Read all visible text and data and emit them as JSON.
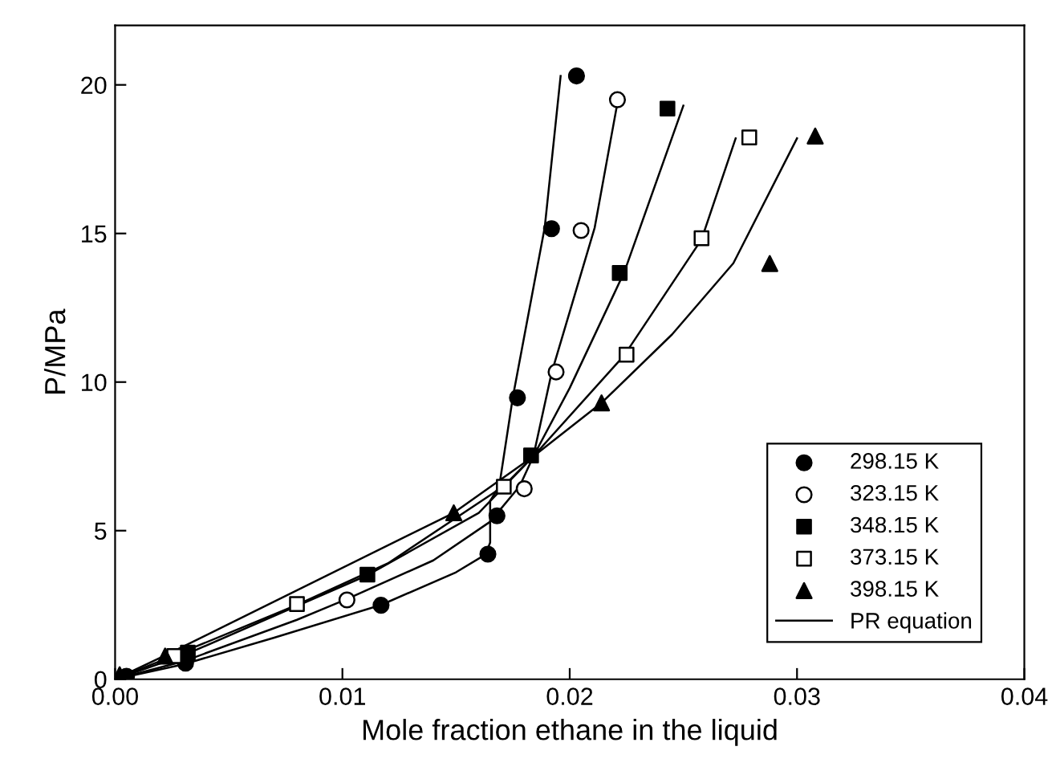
{
  "chart_data": {
    "type": "scatter",
    "xlabel": "Mole fraction ethane in the liquid",
    "ylabel": "P/MPa",
    "xlim": [
      0,
      0.04
    ],
    "ylim": [
      0,
      22
    ],
    "xticks": [
      {
        "value": 0,
        "label": "0.00"
      },
      {
        "value": 0.01,
        "label": "0.01"
      },
      {
        "value": 0.02,
        "label": "0.02"
      },
      {
        "value": 0.03,
        "label": "0.03"
      },
      {
        "value": 0.04,
        "label": "0.04"
      }
    ],
    "yticks": [
      0,
      5,
      10,
      15,
      20
    ],
    "grid": false,
    "legend": "bottom right",
    "series": [
      {
        "name": "298.15 K",
        "marker": "circle",
        "color": "#000000",
        "x": [
          0.0005,
          0.0031,
          0.0117,
          0.0164,
          0.0168,
          0.0177,
          0.0192,
          0.0203
        ],
        "values": [
          0.1,
          0.54,
          2.49,
          4.21,
          5.5,
          9.47,
          15.16,
          20.3
        ]
      },
      {
        "name": "323.15 K",
        "marker": "circle",
        "color": "#ffffff",
        "x": [
          0.0102,
          0.018,
          0.0194,
          0.0205,
          0.0221
        ],
        "values": [
          2.67,
          6.41,
          10.34,
          15.1,
          19.5
        ]
      },
      {
        "name": "348.15 K",
        "marker": "square",
        "color": "#000000",
        "x": [
          0.0032,
          0.0111,
          0.0183,
          0.0222,
          0.0243
        ],
        "values": [
          0.9,
          3.52,
          7.53,
          13.67,
          19.2
        ]
      },
      {
        "name": "373.15 K",
        "marker": "square",
        "color": "#ffffff",
        "x": [
          0.0026,
          0.008,
          0.0171,
          0.0225,
          0.0258,
          0.0279
        ],
        "values": [
          0.78,
          2.53,
          6.48,
          10.92,
          14.84,
          18.23
        ]
      },
      {
        "name": "398.15 K",
        "marker": "triangle",
        "color": "#000000",
        "x": [
          0.0002,
          0.0022,
          0.0149,
          0.0214,
          0.0288,
          0.0308
        ],
        "values": [
          0.15,
          0.78,
          5.6,
          9.3,
          13.99,
          18.28
        ]
      },
      {
        "name": "PR equation",
        "type": "line",
        "marker": "none",
        "line_style": "solid",
        "color": "#000000",
        "x": [
          0,
          0.003,
          0.007,
          0.0117,
          0.015,
          0.0163,
          0.0165,
          0.0165,
          0.0169,
          0.0175,
          0.0189,
          0.0196
        ],
        "values": [
          0,
          0.5,
          1.4,
          2.5,
          3.6,
          4.2,
          4.6,
          6.0,
          6.5,
          9.5,
          15.2,
          20.3
        ]
      },
      {
        "type": "line",
        "marker": "none",
        "line_style": "solid",
        "color": "#000000",
        "x": [
          0,
          0.003,
          0.008,
          0.0102,
          0.014,
          0.0165,
          0.0178,
          0.0184,
          0.0192,
          0.0211,
          0.0221
        ],
        "values": [
          0,
          0.6,
          2.0,
          2.7,
          4.0,
          5.3,
          6.5,
          7.5,
          10.3,
          15.2,
          19.4
        ]
      },
      {
        "type": "line",
        "marker": "none",
        "line_style": "solid",
        "color": "#000000",
        "x": [
          0,
          0.003,
          0.0111,
          0.016,
          0.0184,
          0.02,
          0.0224,
          0.025
        ],
        "values": [
          0,
          0.8,
          3.5,
          5.6,
          7.5,
          9.8,
          13.7,
          19.3
        ]
      },
      {
        "type": "line",
        "marker": "none",
        "line_style": "solid",
        "color": "#000000",
        "x": [
          0,
          0.0026,
          0.008,
          0.012,
          0.0171,
          0.0184,
          0.0224,
          0.0258,
          0.0273
        ],
        "values": [
          0,
          0.8,
          2.5,
          3.9,
          6.5,
          7.5,
          10.9,
          14.8,
          18.2
        ]
      },
      {
        "type": "line",
        "marker": "none",
        "line_style": "solid",
        "color": "#000000",
        "x": [
          0,
          0.0022,
          0.0149,
          0.0184,
          0.0214,
          0.0245,
          0.0272,
          0.03
        ],
        "values": [
          0,
          0.8,
          5.6,
          7.5,
          9.3,
          11.6,
          14.0,
          18.2
        ]
      }
    ]
  }
}
